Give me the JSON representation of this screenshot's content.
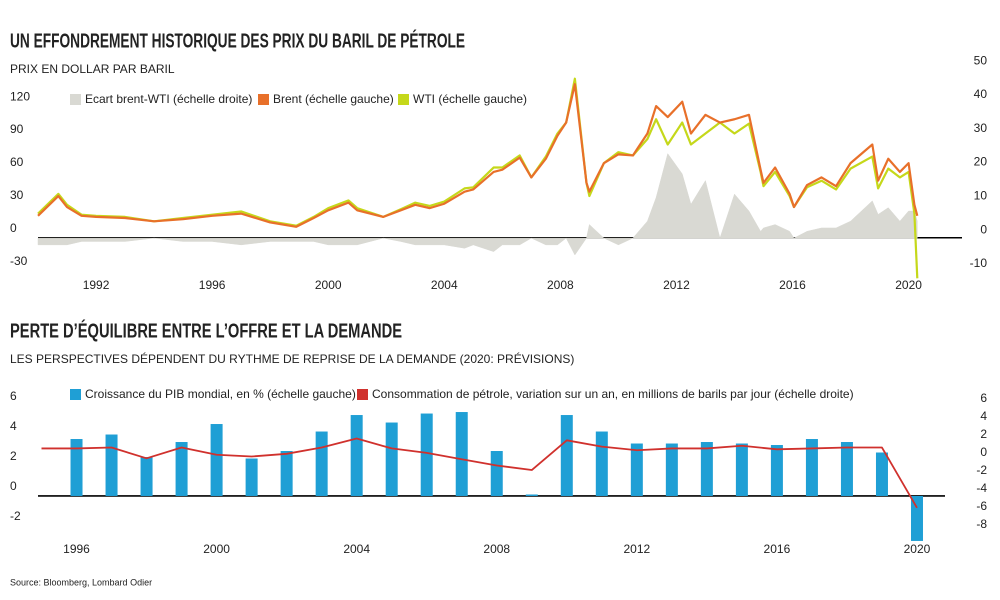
{
  "chart_data": [
    {
      "type": "line",
      "title": "UN EFFONDREMENT HISTORIQUE DES PRIX DU BARIL DE PÉTROLE",
      "subtitle": "PRIX EN DOLLAR PAR BARIL",
      "x": [
        1990.0,
        1990.7,
        1991.0,
        1991.5,
        1992.0,
        1993.0,
        1994.0,
        1995.0,
        1996.0,
        1997.0,
        1998.0,
        1998.9,
        1999.5,
        2000.0,
        2000.7,
        2001.0,
        2001.9,
        2002.5,
        2003.0,
        2003.5,
        2004.0,
        2004.7,
        2005.0,
        2005.7,
        2006.0,
        2006.6,
        2007.0,
        2007.5,
        2007.9,
        2008.2,
        2008.5,
        2008.9,
        2009.0,
        2009.5,
        2010.0,
        2010.5,
        2011.0,
        2011.3,
        2011.7,
        2012.2,
        2012.5,
        2013.0,
        2013.5,
        2014.0,
        2014.5,
        2014.9,
        2015.0,
        2015.4,
        2015.9,
        2016.05,
        2016.5,
        2017.0,
        2017.5,
        2018.0,
        2018.75,
        2018.95,
        2019.3,
        2019.7,
        2020.0,
        2020.2,
        2020.3
      ],
      "xlim": [
        1990.0,
        2020.6
      ],
      "xticks": [
        1992,
        1996,
        2000,
        2004,
        2008,
        2012,
        2016,
        2020
      ],
      "ylim": [
        -38.5,
        162
      ],
      "yticks": [
        -30,
        0,
        30,
        60,
        90,
        120
      ],
      "y2lim": [
        -12.4,
        52.7
      ],
      "y2ticks": [
        -10,
        0,
        10,
        20,
        30,
        40,
        50
      ],
      "series": [
        {
          "name": "Ecart brent-WTI (échelle droite)",
          "type": "area",
          "axis": "y2",
          "color": "#d9d9d3",
          "values": [
            -2,
            -2,
            -2,
            -1,
            -1,
            -1,
            0,
            -1,
            -1,
            -2,
            -1,
            -1,
            -1,
            -2,
            -2,
            -2,
            0,
            -1,
            -2,
            -2,
            -2,
            -3,
            -2,
            -4,
            -2,
            -2,
            0,
            -2,
            -2,
            0,
            -5,
            0,
            4,
            0,
            -2,
            0,
            5,
            12,
            25,
            19,
            10,
            17,
            0,
            13,
            8,
            2,
            3,
            4,
            2,
            0,
            2,
            3,
            3,
            5,
            11,
            7,
            9,
            5,
            8,
            8,
            5
          ]
        },
        {
          "name": "Brent (échelle gauche)",
          "type": "line",
          "color": "#e8702a",
          "values": [
            20,
            38,
            28,
            20,
            19,
            18,
            15,
            17,
            20,
            22,
            14,
            10,
            18,
            25,
            32,
            25,
            19,
            25,
            30,
            27,
            31,
            42,
            44,
            60,
            62,
            73,
            55,
            72,
            93,
            105,
            140,
            50,
            42,
            68,
            76,
            75,
            95,
            120,
            110,
            124,
            95,
            112,
            105,
            108,
            112,
            62,
            50,
            64,
            40,
            28,
            48,
            55,
            47,
            68,
            85,
            52,
            72,
            60,
            68,
            30,
            20
          ]
        },
        {
          "name": "WTI (échelle gauche)",
          "type": "line",
          "color": "#c5d81a",
          "values": [
            22,
            40,
            30,
            21,
            20,
            19,
            15,
            18,
            21,
            24,
            15,
            11,
            19,
            27,
            34,
            27,
            19,
            26,
            32,
            29,
            33,
            45,
            46,
            64,
            64,
            75,
            55,
            74,
            95,
            105,
            145,
            50,
            38,
            68,
            78,
            75,
            90,
            108,
            85,
            105,
            85,
            95,
            105,
            95,
            104,
            60,
            47,
            60,
            38,
            28,
            46,
            52,
            44,
            63,
            74,
            45,
            63,
            55,
            60,
            22,
            -37
          ]
        }
      ]
    },
    {
      "type": "bar",
      "title": "PERTE D’ÉQUILIBRE ENTRE L’OFFRE ET LA DEMANDE",
      "subtitle": "LES PERSPECTIVES DÉPENDENT DU RYTHME DE REPRISE DE LA DEMANDE (2020: PRÉVISIONS)",
      "x": [
        1995,
        1996,
        1997,
        1998,
        1999,
        2000,
        2001,
        2002,
        2003,
        2004,
        2005,
        2006,
        2007,
        2008,
        2009,
        2010,
        2011,
        2012,
        2013,
        2014,
        2015,
        2016,
        2017,
        2018,
        2019,
        2020
      ],
      "xlim": [
        1994.9,
        2020.8
      ],
      "xticks": [
        1996,
        2000,
        2004,
        2008,
        2012,
        2016,
        2020
      ],
      "ylim": [
        -3.27,
        7.07
      ],
      "yticks": [
        -2,
        0,
        2,
        4,
        6
      ],
      "y2lim": [
        -9.33,
        7.89
      ],
      "y2ticks": [
        -8,
        -6,
        -4,
        -2,
        0,
        2,
        4,
        6
      ],
      "series": [
        {
          "name": "Croissance du PIB mondial, en % (échelle gauche)",
          "type": "bar",
          "color": "#1f9fd5",
          "values": [
            null,
            3.8,
            4.1,
            2.6,
            3.6,
            4.8,
            2.5,
            3.0,
            4.3,
            5.4,
            4.9,
            5.5,
            5.6,
            3.0,
            0.1,
            5.4,
            4.3,
            3.5,
            3.5,
            3.6,
            3.5,
            3.4,
            3.8,
            3.6,
            2.9,
            -3.0
          ]
        },
        {
          "name": "Consommation de pétrole, variation sur un an, en millions de barils par jour (échelle droite)",
          "type": "line",
          "axis": "y2",
          "color": "#d0312d",
          "values": [
            1.4,
            1.4,
            1.5,
            0.3,
            1.5,
            0.7,
            0.5,
            0.8,
            1.5,
            2.5,
            1.4,
            0.9,
            0.2,
            -0.5,
            -1.0,
            2.3,
            1.6,
            1.2,
            1.4,
            1.4,
            1.7,
            1.3,
            1.4,
            1.5,
            1.5,
            -5.2
          ]
        }
      ]
    }
  ],
  "source": "Source: Bloomberg, Lombard Odier"
}
